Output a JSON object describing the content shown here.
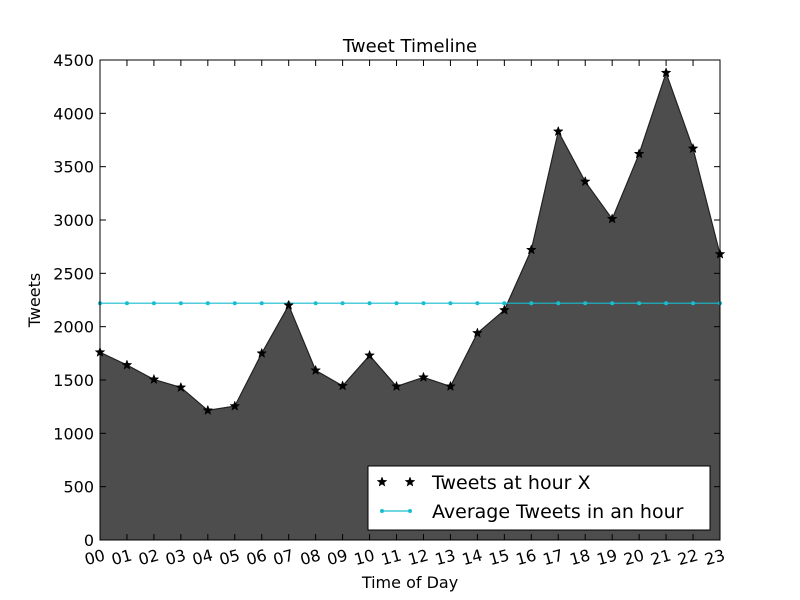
{
  "chart_data": {
    "type": "area",
    "title": "Tweet Timeline",
    "xlabel": "Time of Day",
    "ylabel": "Tweets",
    "categories": [
      "00",
      "01",
      "02",
      "03",
      "04",
      "05",
      "06",
      "07",
      "08",
      "09",
      "10",
      "11",
      "12",
      "13",
      "14",
      "15",
      "16",
      "17",
      "18",
      "19",
      "20",
      "21",
      "22",
      "23"
    ],
    "ylim": [
      0,
      4500
    ],
    "yticks": [
      0,
      500,
      1000,
      1500,
      2000,
      2500,
      3000,
      3500,
      4000,
      4500
    ],
    "grid": false,
    "legend_position": "bottom-right",
    "series": [
      {
        "name": "Tweets at hour X",
        "marker": "star",
        "fill_color": "#4d4d4d",
        "values": [
          1760,
          1640,
          1505,
          1430,
          1215,
          1255,
          1750,
          2200,
          1590,
          1445,
          1730,
          1440,
          1525,
          1440,
          1940,
          2155,
          2720,
          3830,
          3360,
          3010,
          3620,
          4380,
          3670,
          2680
        ]
      },
      {
        "name": "Average Tweets in an hour",
        "marker": "dot",
        "color": "#17becf",
        "values": [
          2220,
          2220,
          2220,
          2220,
          2220,
          2220,
          2220,
          2220,
          2220,
          2220,
          2220,
          2220,
          2220,
          2220,
          2220,
          2220,
          2220,
          2220,
          2220,
          2220,
          2220,
          2220,
          2220,
          2220
        ]
      }
    ]
  }
}
